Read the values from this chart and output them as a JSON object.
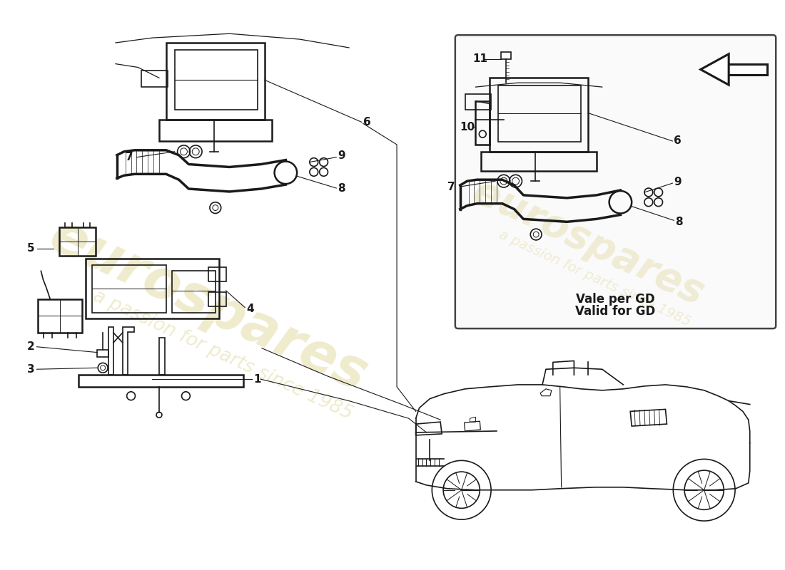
{
  "bg": "#ffffff",
  "lc": "#1a1a1a",
  "lw": 1.2,
  "lw_thick": 1.8,
  "watermark1": "eurospares",
  "watermark2": "a passion for parts since 1985",
  "valid_text": "Vale per GD\nValid for GD",
  "fig_w": 11.0,
  "fig_h": 8.0,
  "dpi": 100
}
